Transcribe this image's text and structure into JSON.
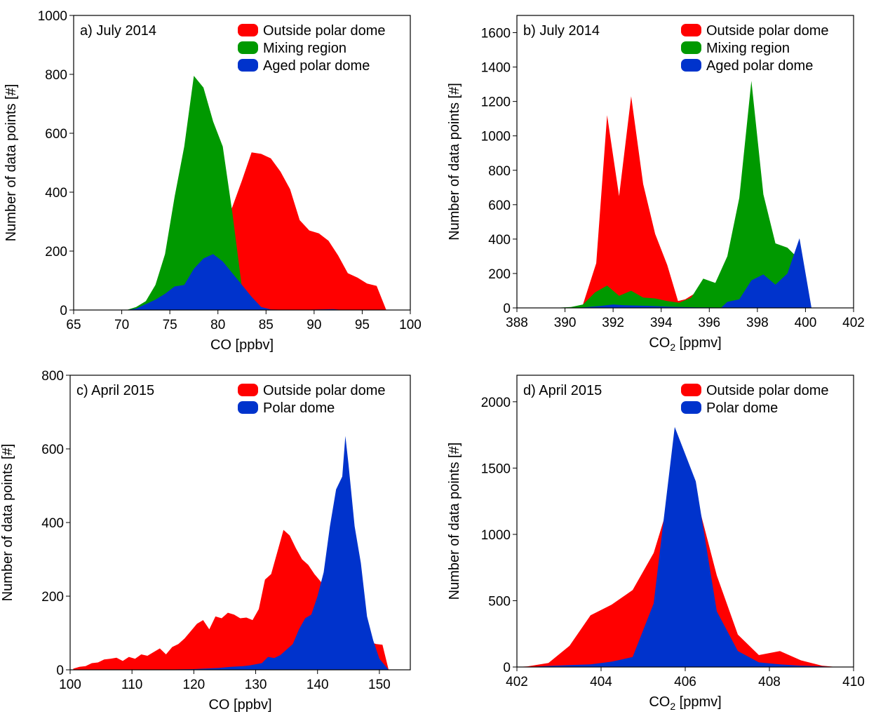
{
  "colors": {
    "outside": "#ff0000",
    "mixing": "#009900",
    "aged": "#0033cc"
  },
  "chart_data": [
    {
      "type": "area",
      "title": "a) July 2014",
      "xlabel": "CO [ppbv]",
      "xlabel_sub": "",
      "xlabel_suffix": "",
      "ylabel": "Number of data points [#]",
      "xlim": [
        65,
        100
      ],
      "ylim": [
        0,
        1000
      ],
      "xticks": [
        65,
        70,
        75,
        80,
        85,
        90,
        95,
        100
      ],
      "yticks": [
        0,
        200,
        400,
        600,
        800,
        1000
      ],
      "legend_position": "top-right",
      "series": [
        {
          "name": "Outside polar dome",
          "color": "#ff0000",
          "x": [
            70.5,
            72.5,
            74.5,
            76.5,
            78,
            79.5,
            80.5,
            81.5,
            82.5,
            83.5,
            84.5,
            85.5,
            86.5,
            87.5,
            88.5,
            89.5,
            90.5,
            91.5,
            92.5,
            93.5,
            94.5,
            95.5,
            96.5,
            97.5
          ],
          "y": [
            0,
            0,
            0,
            0,
            0,
            0,
            280,
            350,
            440,
            535,
            530,
            515,
            470,
            410,
            305,
            270,
            260,
            235,
            185,
            125,
            110,
            90,
            82,
            0
          ]
        },
        {
          "name": "Mixing region",
          "color": "#009900",
          "x": [
            70.5,
            71.5,
            72.5,
            73.5,
            74.5,
            75.5,
            76.5,
            77.5,
            78.5,
            79.5,
            80.5,
            81.5,
            82.5,
            83.5,
            84.5,
            85.5
          ],
          "y": [
            0,
            10,
            30,
            85,
            190,
            385,
            555,
            795,
            755,
            640,
            555,
            330,
            75,
            15,
            5,
            0
          ]
        },
        {
          "name": "Aged polar dome",
          "color": "#0033cc",
          "x": [
            70.5,
            71.5,
            72.5,
            73.5,
            74.5,
            75.5,
            76.5,
            77.5,
            78.5,
            79.5,
            80.5,
            81.5,
            82.5,
            83.5,
            84.5,
            85.5,
            88,
            92,
            93
          ],
          "y": [
            0,
            5,
            20,
            35,
            55,
            80,
            85,
            140,
            175,
            190,
            165,
            125,
            85,
            45,
            10,
            2,
            0,
            3,
            0
          ]
        }
      ]
    },
    {
      "type": "area",
      "title": "b) July 2014",
      "xlabel": "CO",
      "xlabel_sub": "2",
      "xlabel_suffix": " [ppmv]",
      "ylabel": "Number of data points [#]",
      "xlim": [
        388,
        402
      ],
      "ylim": [
        0,
        1700
      ],
      "xticks": [
        388,
        390,
        392,
        394,
        396,
        398,
        400,
        402
      ],
      "yticks": [
        0,
        200,
        400,
        600,
        800,
        1000,
        1200,
        1400,
        1600
      ],
      "legend_position": "top-right",
      "series": [
        {
          "name": "Outside polar dome",
          "color": "#ff0000",
          "x": [
            390.7,
            391.3,
            391.75,
            392.25,
            392.75,
            393.25,
            393.75,
            394.25,
            394.7,
            395,
            395.35,
            395.6
          ],
          "y": [
            0,
            260,
            1120,
            650,
            1230,
            720,
            430,
            250,
            40,
            50,
            80,
            0
          ]
        },
        {
          "name": "Mixing region",
          "color": "#009900",
          "x": [
            389.5,
            390.25,
            390.75,
            391.25,
            391.75,
            392.25,
            392.75,
            393.25,
            393.75,
            394.25,
            394.75,
            395.25,
            395.75,
            396.25,
            396.75,
            397.25,
            397.75,
            398.25,
            398.75,
            399.25,
            399.75,
            400.0
          ],
          "y": [
            0,
            5,
            20,
            90,
            130,
            70,
            100,
            60,
            55,
            40,
            30,
            60,
            170,
            145,
            300,
            640,
            1320,
            660,
            375,
            350,
            280,
            0
          ]
        },
        {
          "name": "Aged polar dome",
          "color": "#0033cc",
          "x": [
            390.5,
            391.5,
            392,
            392.5,
            393.5,
            394.5,
            395.5,
            396.5,
            396.75,
            397.25,
            397.75,
            398.25,
            398.75,
            399.25,
            399.75,
            400.25
          ],
          "y": [
            0,
            12,
            20,
            15,
            12,
            6,
            3,
            2,
            35,
            50,
            160,
            195,
            135,
            200,
            405,
            0
          ]
        }
      ]
    },
    {
      "type": "area",
      "title": "c) April 2015",
      "xlabel": "CO [ppbv]",
      "xlabel_sub": "",
      "xlabel_suffix": "",
      "ylabel": "Number of data points [#]",
      "xlim": [
        100,
        155
      ],
      "ylim": [
        0,
        800
      ],
      "xticks": [
        100,
        110,
        120,
        130,
        140,
        150
      ],
      "yticks": [
        0,
        200,
        400,
        600,
        800
      ],
      "legend_position": "top-right",
      "series": [
        {
          "name": "Outside polar dome",
          "color": "#ff0000",
          "x": [
            100.5,
            101.5,
            102.5,
            103.5,
            104.5,
            105.5,
            106.5,
            107.5,
            108.5,
            109.5,
            110.5,
            111.5,
            112.5,
            113.5,
            114.5,
            115.5,
            116.5,
            117.5,
            118.5,
            119.5,
            120.5,
            121.5,
            122.5,
            123.5,
            124.5,
            125.5,
            126.5,
            127.5,
            128.5,
            129.5,
            130.5,
            131.5,
            132.5,
            133.5,
            134.5,
            135.5,
            136.5,
            137.5,
            138.5,
            139.5,
            140.5,
            141.5,
            142.5,
            143.5,
            144.5,
            145.5,
            146.5,
            147.5,
            148.5,
            149.5,
            150.5,
            151.5
          ],
          "y": [
            3,
            8,
            10,
            18,
            20,
            28,
            30,
            33,
            24,
            35,
            30,
            42,
            38,
            48,
            58,
            42,
            62,
            70,
            85,
            105,
            125,
            135,
            110,
            145,
            140,
            155,
            150,
            140,
            142,
            135,
            165,
            245,
            260,
            320,
            380,
            365,
            330,
            300,
            285,
            260,
            240,
            215,
            190,
            165,
            140,
            120,
            100,
            85,
            75,
            70,
            68,
            0
          ]
        },
        {
          "name": "Polar dome",
          "color": "#0033cc",
          "x": [
            114,
            120,
            124,
            126,
            128,
            129,
            130,
            131,
            132,
            133,
            134,
            135,
            136,
            137,
            138,
            139,
            140,
            141,
            142,
            143,
            144,
            144.5,
            145,
            146,
            147,
            148,
            149,
            150,
            151,
            151.5
          ],
          "y": [
            0,
            2,
            5,
            8,
            10,
            12,
            15,
            18,
            35,
            32,
            40,
            55,
            70,
            110,
            140,
            150,
            200,
            265,
            390,
            490,
            525,
            635,
            560,
            390,
            290,
            145,
            80,
            30,
            10,
            0
          ]
        }
      ]
    },
    {
      "type": "area",
      "title": "d) April 2015",
      "xlabel": "CO",
      "xlabel_sub": "2",
      "xlabel_suffix": " [ppmv]",
      "ylabel": "Number of data points [#]",
      "xlim": [
        402,
        410
      ],
      "ylim": [
        0,
        2200
      ],
      "xticks": [
        402,
        404,
        406,
        408,
        410
      ],
      "yticks": [
        0,
        500,
        1000,
        1500,
        2000
      ],
      "legend_position": "top-right",
      "series": [
        {
          "name": "Outside polar dome",
          "color": "#ff0000",
          "x": [
            402,
            402.25,
            402.75,
            403.25,
            403.75,
            404.25,
            404.75,
            405.25,
            405.5,
            405.75,
            406.25,
            406.75,
            407.25,
            407.75,
            408.25,
            408.75,
            409.25,
            409.6
          ],
          "y": [
            0,
            5,
            30,
            160,
            390,
            470,
            580,
            860,
            1120,
            1140,
            1300,
            690,
            245,
            90,
            120,
            50,
            10,
            0
          ]
        },
        {
          "name": "Polar dome",
          "color": "#0033cc",
          "x": [
            402.25,
            402.75,
            403.25,
            403.75,
            404.25,
            404.75,
            405.25,
            405.75,
            406.25,
            406.75,
            407.25,
            407.75,
            408.25,
            408.75,
            409.25,
            409.6
          ],
          "y": [
            0,
            8,
            15,
            20,
            40,
            75,
            480,
            1810,
            1400,
            420,
            120,
            35,
            20,
            10,
            5,
            0
          ]
        }
      ]
    }
  ]
}
